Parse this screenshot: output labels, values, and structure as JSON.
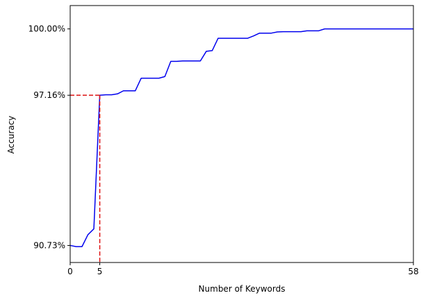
{
  "chart_data": {
    "type": "line",
    "title": "",
    "xlabel": "Number of Keywords",
    "ylabel": "Accuracy",
    "xlim": [
      0,
      58
    ],
    "ylim": [
      90.0,
      101.0
    ],
    "xticks": [
      {
        "value": 0,
        "label": "0"
      },
      {
        "value": 5,
        "label": "5"
      },
      {
        "value": 58,
        "label": "58"
      }
    ],
    "yticks": [
      {
        "value": 90.73,
        "label": "90.73%"
      },
      {
        "value": 97.16,
        "label": "97.16%"
      },
      {
        "value": 100.0,
        "label": "100.00%"
      }
    ],
    "grid": false,
    "line_color": "#0000ee",
    "reference_color": "#dd1111",
    "reference_point": {
      "x": 5,
      "y": 97.16
    },
    "series": [
      {
        "x": [
          0,
          1,
          2,
          3,
          4,
          5,
          6,
          7,
          8,
          9,
          10,
          11,
          12,
          13,
          14,
          15,
          16,
          17,
          18,
          19,
          20,
          21,
          22,
          23,
          24,
          25,
          26,
          27,
          28,
          29,
          30,
          31,
          32,
          33,
          34,
          35,
          36,
          37,
          38,
          39,
          40,
          41,
          42,
          43,
          44,
          45,
          46,
          47,
          48,
          49,
          50,
          51,
          52,
          53,
          54,
          55,
          56,
          57,
          58
        ],
        "values": [
          90.73,
          90.68,
          90.68,
          91.19,
          91.44,
          97.16,
          97.18,
          97.18,
          97.22,
          97.35,
          97.35,
          97.35,
          97.89,
          97.89,
          97.89,
          97.89,
          97.96,
          98.61,
          98.61,
          98.63,
          98.63,
          98.63,
          98.63,
          99.04,
          99.07,
          99.6,
          99.6,
          99.6,
          99.6,
          99.6,
          99.6,
          99.7,
          99.82,
          99.82,
          99.82,
          99.87,
          99.88,
          99.88,
          99.88,
          99.88,
          99.92,
          99.92,
          99.92,
          100.0,
          100.0,
          100.0,
          100.0,
          100.0,
          100.0,
          100.0,
          100.0,
          100.0,
          100.0,
          100.0,
          100.0,
          100.0,
          100.0,
          100.0,
          100.0
        ]
      }
    ]
  }
}
